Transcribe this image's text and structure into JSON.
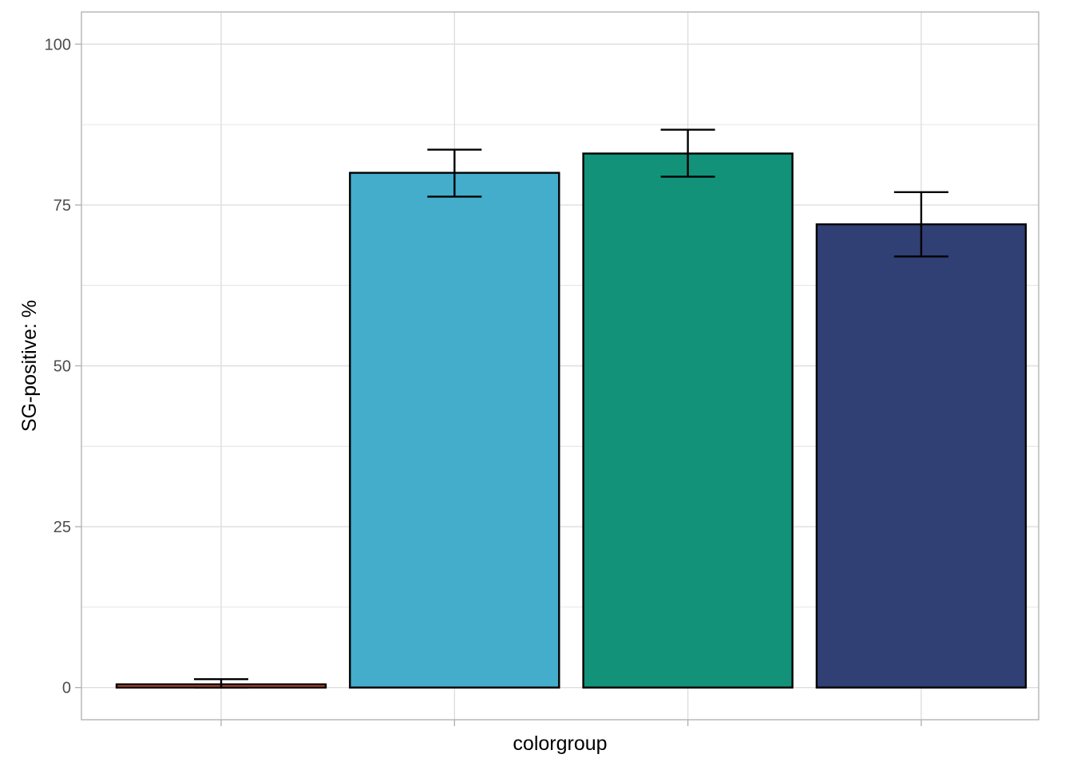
{
  "chart_data": {
    "type": "bar",
    "categories": [
      "",
      "",
      "",
      ""
    ],
    "values": [
      0.5,
      80,
      83,
      72
    ],
    "error_low": [
      0,
      76.3,
      79.4,
      67
    ],
    "error_high": [
      1.3,
      83.6,
      86.7,
      77
    ],
    "colors": [
      "#dc4a2e",
      "#43adcb",
      "#13927a",
      "#303f74"
    ],
    "xlabel": "colorgroup",
    "ylabel": "SG-positive: %",
    "ylim": [
      -5,
      105
    ],
    "yticks": [
      0,
      25,
      50,
      75,
      100
    ],
    "ytick_labels": [
      "0",
      "25",
      "50",
      "75",
      "100"
    ],
    "grid": true,
    "legend": "none",
    "style": {
      "grid_color": "#dedede",
      "panel_border_color": "#b3b3b3",
      "bar_outline_color": "#000000",
      "axis_tick_color": "#b3b3b3"
    }
  }
}
